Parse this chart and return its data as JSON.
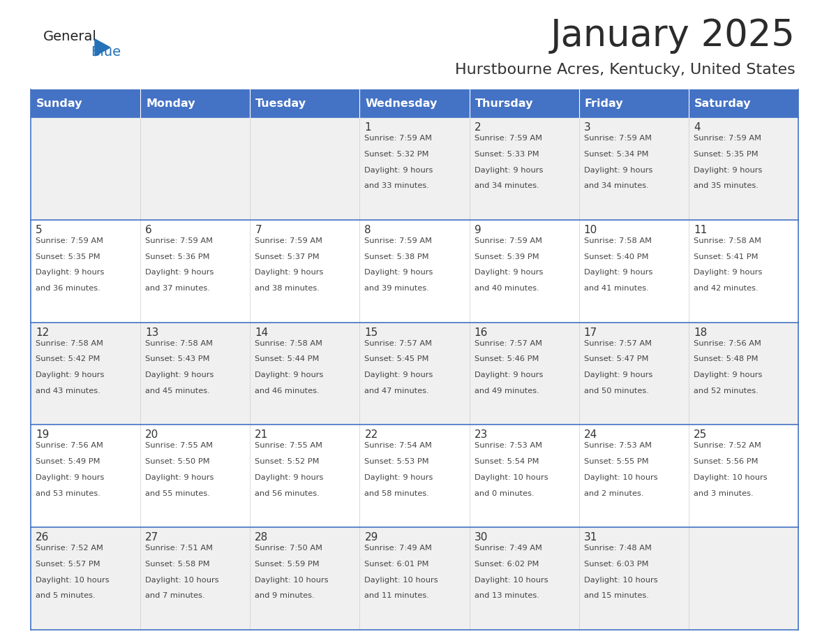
{
  "title": "January 2025",
  "subtitle": "Hurstbourne Acres, Kentucky, United States",
  "header_bg": "#4472C4",
  "header_text_color": "#FFFFFF",
  "cell_bg_odd": "#F0F0F0",
  "cell_bg_even": "#FFFFFF",
  "border_color": "#4472C4",
  "days_of_week": [
    "Sunday",
    "Monday",
    "Tuesday",
    "Wednesday",
    "Thursday",
    "Friday",
    "Saturday"
  ],
  "title_color": "#2B2B2B",
  "subtitle_color": "#333333",
  "day_num_color": "#333333",
  "cell_text_color": "#444444",
  "logo_general_color": "#222222",
  "logo_blue_color": "#2471B8",
  "calendar_data": [
    [
      null,
      null,
      null,
      {
        "day": 1,
        "sunrise": "7:59 AM",
        "sunset": "5:32 PM",
        "daylight_h": "9 hours",
        "daylight_m": "and 33 minutes."
      },
      {
        "day": 2,
        "sunrise": "7:59 AM",
        "sunset": "5:33 PM",
        "daylight_h": "9 hours",
        "daylight_m": "and 34 minutes."
      },
      {
        "day": 3,
        "sunrise": "7:59 AM",
        "sunset": "5:34 PM",
        "daylight_h": "9 hours",
        "daylight_m": "and 34 minutes."
      },
      {
        "day": 4,
        "sunrise": "7:59 AM",
        "sunset": "5:35 PM",
        "daylight_h": "9 hours",
        "daylight_m": "and 35 minutes."
      }
    ],
    [
      {
        "day": 5,
        "sunrise": "7:59 AM",
        "sunset": "5:35 PM",
        "daylight_h": "9 hours",
        "daylight_m": "and 36 minutes."
      },
      {
        "day": 6,
        "sunrise": "7:59 AM",
        "sunset": "5:36 PM",
        "daylight_h": "9 hours",
        "daylight_m": "and 37 minutes."
      },
      {
        "day": 7,
        "sunrise": "7:59 AM",
        "sunset": "5:37 PM",
        "daylight_h": "9 hours",
        "daylight_m": "and 38 minutes."
      },
      {
        "day": 8,
        "sunrise": "7:59 AM",
        "sunset": "5:38 PM",
        "daylight_h": "9 hours",
        "daylight_m": "and 39 minutes."
      },
      {
        "day": 9,
        "sunrise": "7:59 AM",
        "sunset": "5:39 PM",
        "daylight_h": "9 hours",
        "daylight_m": "and 40 minutes."
      },
      {
        "day": 10,
        "sunrise": "7:58 AM",
        "sunset": "5:40 PM",
        "daylight_h": "9 hours",
        "daylight_m": "and 41 minutes."
      },
      {
        "day": 11,
        "sunrise": "7:58 AM",
        "sunset": "5:41 PM",
        "daylight_h": "9 hours",
        "daylight_m": "and 42 minutes."
      }
    ],
    [
      {
        "day": 12,
        "sunrise": "7:58 AM",
        "sunset": "5:42 PM",
        "daylight_h": "9 hours",
        "daylight_m": "and 43 minutes."
      },
      {
        "day": 13,
        "sunrise": "7:58 AM",
        "sunset": "5:43 PM",
        "daylight_h": "9 hours",
        "daylight_m": "and 45 minutes."
      },
      {
        "day": 14,
        "sunrise": "7:58 AM",
        "sunset": "5:44 PM",
        "daylight_h": "9 hours",
        "daylight_m": "and 46 minutes."
      },
      {
        "day": 15,
        "sunrise": "7:57 AM",
        "sunset": "5:45 PM",
        "daylight_h": "9 hours",
        "daylight_m": "and 47 minutes."
      },
      {
        "day": 16,
        "sunrise": "7:57 AM",
        "sunset": "5:46 PM",
        "daylight_h": "9 hours",
        "daylight_m": "and 49 minutes."
      },
      {
        "day": 17,
        "sunrise": "7:57 AM",
        "sunset": "5:47 PM",
        "daylight_h": "9 hours",
        "daylight_m": "and 50 minutes."
      },
      {
        "day": 18,
        "sunrise": "7:56 AM",
        "sunset": "5:48 PM",
        "daylight_h": "9 hours",
        "daylight_m": "and 52 minutes."
      }
    ],
    [
      {
        "day": 19,
        "sunrise": "7:56 AM",
        "sunset": "5:49 PM",
        "daylight_h": "9 hours",
        "daylight_m": "and 53 minutes."
      },
      {
        "day": 20,
        "sunrise": "7:55 AM",
        "sunset": "5:50 PM",
        "daylight_h": "9 hours",
        "daylight_m": "and 55 minutes."
      },
      {
        "day": 21,
        "sunrise": "7:55 AM",
        "sunset": "5:52 PM",
        "daylight_h": "9 hours",
        "daylight_m": "and 56 minutes."
      },
      {
        "day": 22,
        "sunrise": "7:54 AM",
        "sunset": "5:53 PM",
        "daylight_h": "9 hours",
        "daylight_m": "and 58 minutes."
      },
      {
        "day": 23,
        "sunrise": "7:53 AM",
        "sunset": "5:54 PM",
        "daylight_h": "10 hours",
        "daylight_m": "and 0 minutes."
      },
      {
        "day": 24,
        "sunrise": "7:53 AM",
        "sunset": "5:55 PM",
        "daylight_h": "10 hours",
        "daylight_m": "and 2 minutes."
      },
      {
        "day": 25,
        "sunrise": "7:52 AM",
        "sunset": "5:56 PM",
        "daylight_h": "10 hours",
        "daylight_m": "and 3 minutes."
      }
    ],
    [
      {
        "day": 26,
        "sunrise": "7:52 AM",
        "sunset": "5:57 PM",
        "daylight_h": "10 hours",
        "daylight_m": "and 5 minutes."
      },
      {
        "day": 27,
        "sunrise": "7:51 AM",
        "sunset": "5:58 PM",
        "daylight_h": "10 hours",
        "daylight_m": "and 7 minutes."
      },
      {
        "day": 28,
        "sunrise": "7:50 AM",
        "sunset": "5:59 PM",
        "daylight_h": "10 hours",
        "daylight_m": "and 9 minutes."
      },
      {
        "day": 29,
        "sunrise": "7:49 AM",
        "sunset": "6:01 PM",
        "daylight_h": "10 hours",
        "daylight_m": "and 11 minutes."
      },
      {
        "day": 30,
        "sunrise": "7:49 AM",
        "sunset": "6:02 PM",
        "daylight_h": "10 hours",
        "daylight_m": "and 13 minutes."
      },
      {
        "day": 31,
        "sunrise": "7:48 AM",
        "sunset": "6:03 PM",
        "daylight_h": "10 hours",
        "daylight_m": "and 15 minutes."
      },
      null
    ]
  ]
}
